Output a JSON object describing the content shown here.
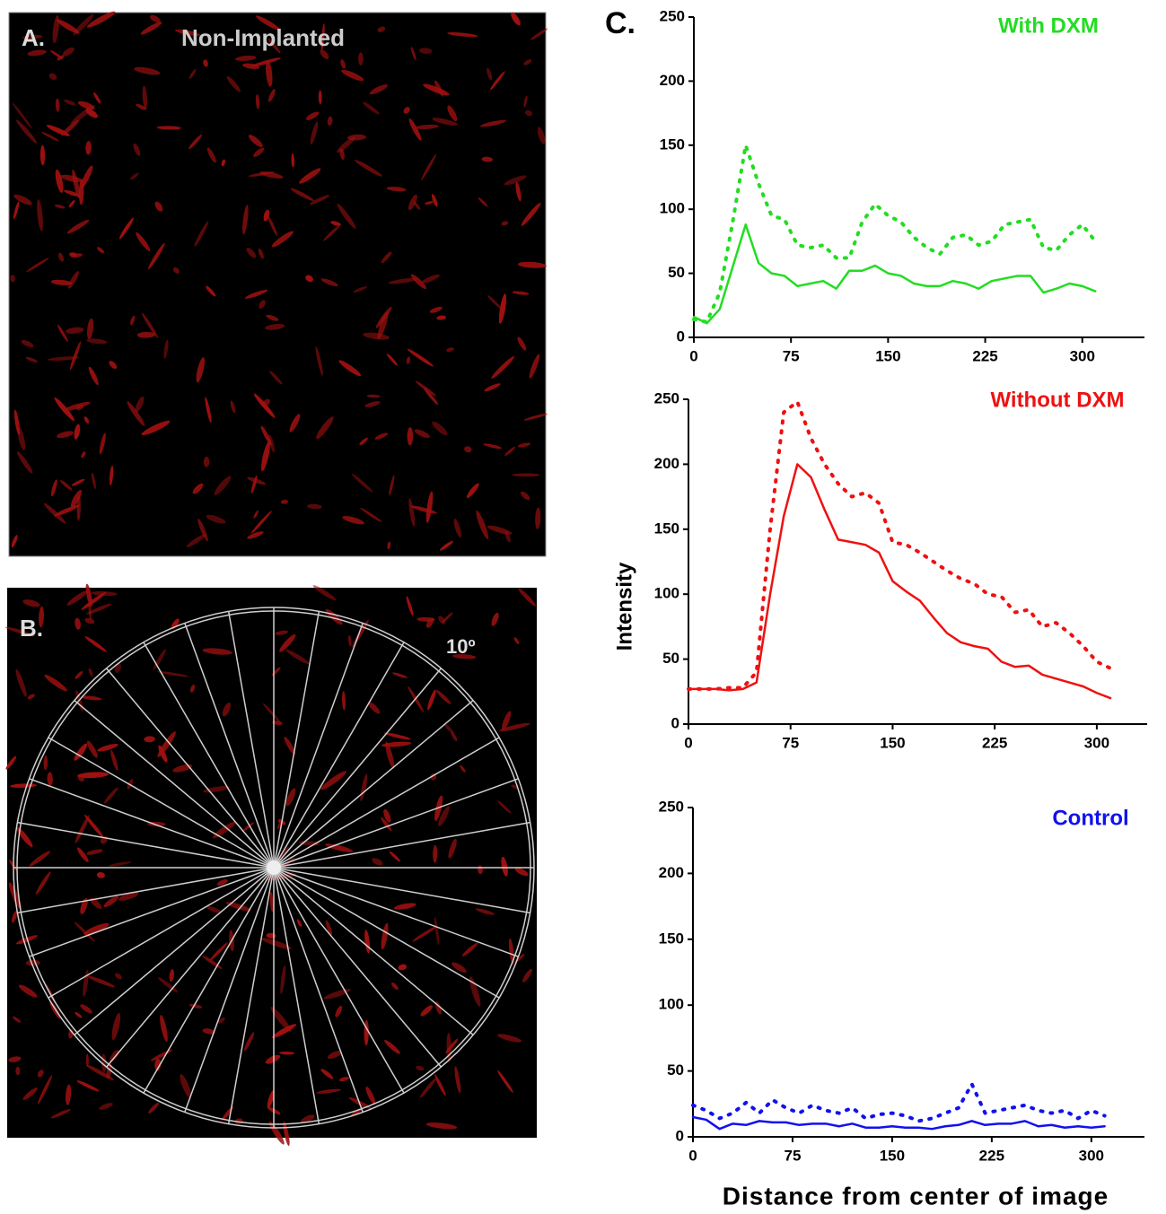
{
  "panels": {
    "a": {
      "label": "A.",
      "title": "Non-Implanted"
    },
    "b": {
      "label": "B.",
      "annotation": "10º"
    },
    "c": {
      "label": "C."
    }
  },
  "chart_data": [
    {
      "type": "line",
      "title": "With DXM",
      "title_color": "#22dd22",
      "x": [
        0,
        10,
        20,
        30,
        40,
        50,
        60,
        70,
        80,
        90,
        100,
        110,
        120,
        130,
        140,
        150,
        160,
        170,
        180,
        190,
        200,
        210,
        220,
        230,
        240,
        250,
        260,
        270,
        280,
        290,
        300,
        310
      ],
      "series": [
        {
          "color": "#22dd22",
          "style": "solid",
          "values": [
            16,
            11,
            22,
            55,
            88,
            58,
            50,
            48,
            40,
            42,
            44,
            38,
            52,
            52,
            56,
            50,
            48,
            42,
            40,
            40,
            44,
            42,
            38,
            44,
            46,
            48,
            48,
            35,
            38,
            42,
            40,
            36
          ]
        },
        {
          "color": "#22dd22",
          "style": "dotted",
          "values": [
            14,
            12,
            35,
            90,
            150,
            120,
            95,
            92,
            72,
            70,
            72,
            62,
            62,
            90,
            104,
            95,
            90,
            78,
            70,
            65,
            78,
            80,
            72,
            75,
            88,
            90,
            92,
            70,
            68,
            80,
            88,
            75
          ]
        }
      ],
      "xlim": [
        0,
        348
      ],
      "ylim": [
        0,
        250
      ],
      "xticks": [
        0,
        75,
        150,
        225,
        300
      ],
      "yticks": [
        0,
        50,
        100,
        150,
        200,
        250
      ]
    },
    {
      "type": "line",
      "title": "Without DXM",
      "title_color": "#ee1111",
      "ylabel": "Intensity",
      "x": [
        0,
        10,
        20,
        30,
        40,
        50,
        60,
        70,
        80,
        90,
        100,
        110,
        120,
        130,
        140,
        150,
        160,
        170,
        180,
        190,
        200,
        210,
        220,
        230,
        240,
        250,
        260,
        270,
        280,
        290,
        300,
        310
      ],
      "series": [
        {
          "color": "#ee1111",
          "style": "solid",
          "values": [
            27,
            27,
            27,
            26,
            27,
            32,
            100,
            160,
            200,
            190,
            165,
            142,
            140,
            138,
            132,
            110,
            102,
            95,
            82,
            70,
            63,
            60,
            58,
            48,
            44,
            45,
            38,
            35,
            32,
            29,
            24,
            20
          ]
        },
        {
          "color": "#ee1111",
          "style": "dotted",
          "values": [
            27,
            27,
            27,
            28,
            28,
            40,
            150,
            240,
            248,
            220,
            200,
            185,
            175,
            178,
            170,
            140,
            138,
            132,
            125,
            118,
            112,
            108,
            100,
            98,
            86,
            88,
            75,
            78,
            70,
            60,
            48,
            43
          ]
        }
      ],
      "xlim": [
        0,
        337
      ],
      "ylim": [
        0,
        250
      ],
      "xticks": [
        0,
        75,
        150,
        225,
        300
      ],
      "yticks": [
        0,
        50,
        100,
        150,
        200,
        250
      ]
    },
    {
      "type": "line",
      "title": "Control",
      "title_color": "#1111ee",
      "xlabel": "Distance from center of image",
      "x": [
        0,
        10,
        20,
        30,
        40,
        50,
        60,
        70,
        80,
        90,
        100,
        110,
        120,
        130,
        140,
        150,
        160,
        170,
        180,
        190,
        200,
        210,
        220,
        230,
        240,
        250,
        260,
        270,
        280,
        290,
        300,
        310
      ],
      "series": [
        {
          "color": "#1111ee",
          "style": "solid",
          "values": [
            15,
            13,
            6,
            10,
            9,
            12,
            11,
            11,
            9,
            10,
            10,
            8,
            10,
            7,
            7,
            8,
            7,
            7,
            6,
            8,
            9,
            12,
            9,
            10,
            10,
            12,
            8,
            9,
            7,
            8,
            7,
            8
          ]
        },
        {
          "color": "#1111ee",
          "style": "dotted",
          "values": [
            24,
            20,
            14,
            18,
            26,
            18,
            28,
            22,
            18,
            24,
            20,
            18,
            22,
            14,
            17,
            18,
            16,
            12,
            14,
            18,
            22,
            40,
            18,
            20,
            22,
            24,
            20,
            18,
            20,
            14,
            20,
            16
          ]
        }
      ],
      "xlim": [
        0,
        340
      ],
      "ylim": [
        0,
        250
      ],
      "xticks": [
        0,
        75,
        150,
        225,
        300
      ],
      "yticks": [
        0,
        50,
        100,
        150,
        200,
        250
      ]
    }
  ]
}
